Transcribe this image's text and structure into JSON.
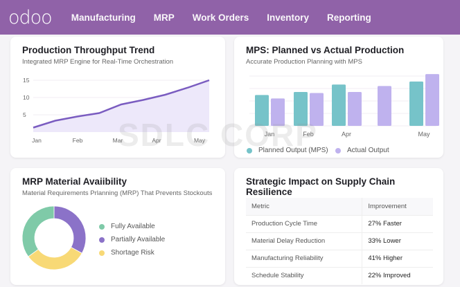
{
  "nav": {
    "logo": "odoo",
    "items": [
      "Manufacturing",
      "MRP",
      "Work Orders",
      "Inventory",
      "Reporting"
    ],
    "color": "#9062a8"
  },
  "watermark": "SDLC CORP",
  "throughput": {
    "title": "Production Throughput Trend",
    "subtitle": "Integrated MRP Engine for Real-Time Orchestration",
    "chart_data": {
      "type": "area",
      "categories": [
        "Jan",
        "Feb",
        "Mar",
        "Apr",
        "May"
      ],
      "x": [
        0,
        0.5,
        1,
        1.5,
        2,
        2.5,
        3,
        3.5,
        4
      ],
      "values": [
        1.3,
        3.3,
        4.5,
        5.5,
        8,
        9.3,
        10.8,
        12.8,
        15
      ],
      "yticks": [
        5,
        10,
        15
      ],
      "ylim": [
        0,
        15
      ],
      "color": "#7a5cc0",
      "fill": "#ede8fa",
      "grid": true
    }
  },
  "mps": {
    "title": "MPS: Planned vs Actual Production",
    "subtitle": "Accurate Production Planning with MPS",
    "chart_data": {
      "type": "bar",
      "categories": [
        "Jan",
        "Feb",
        "Apr",
        "",
        "May"
      ],
      "series": [
        {
          "name": "Planned Output (MPS)",
          "color": "#76c3c9",
          "values": [
            62,
            68,
            83,
            null,
            89
          ]
        },
        {
          "name": "Actual Output",
          "color": "#bfb2ee",
          "values": [
            55,
            66,
            68,
            80,
            104
          ]
        }
      ],
      "ylim": [
        0,
        100
      ],
      "grid": true,
      "legend": "bottom"
    }
  },
  "availability": {
    "title": "MRP Material Avaiibility",
    "subtitle": "Material Requirements Prlanning (MRP) That Prevents Stockouts",
    "chart_data": {
      "type": "pie",
      "donut": true,
      "labels": [
        "Partially Available",
        "Shortage Risk",
        "Fully Available"
      ],
      "values": [
        33,
        32,
        35
      ],
      "colors": [
        "#8b72c8",
        "#f8d976",
        "#7fcaa8"
      ],
      "legend_order": [
        "Fully Available",
        "Partially Available",
        "Shortage Risk"
      ],
      "legend_colors": [
        "#7fcaa8",
        "#8b72c8",
        "#f8d976"
      ]
    }
  },
  "impact": {
    "title": "Strategic Impact on Supply Chain Resilience",
    "headers": [
      "Metric",
      "Improvement"
    ],
    "rows": [
      [
        "Production Cycle Time",
        "27% Faster"
      ],
      [
        "Material Delay Reduction",
        "33% Lower"
      ],
      [
        "Manufacturing Reliability",
        "41% Higher"
      ],
      [
        "Schedule Stability",
        "22% Improved"
      ]
    ]
  }
}
